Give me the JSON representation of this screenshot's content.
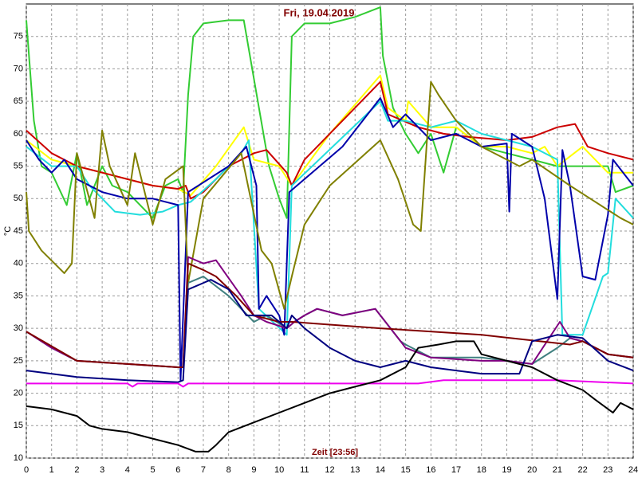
{
  "chart_data": {
    "type": "line",
    "title": "Fri, 19.04.2019",
    "x_label": "Zeit [23:56]",
    "y_label": "°C",
    "xlim": [
      0,
      24
    ],
    "xticks": [
      0,
      1,
      2,
      3,
      4,
      5,
      6,
      7,
      8,
      9,
      10,
      11,
      12,
      13,
      14,
      15,
      16,
      17,
      18,
      19,
      20,
      21,
      22,
      23,
      24
    ],
    "ylim": [
      10,
      80
    ],
    "yticks": [
      10,
      15,
      20,
      25,
      30,
      35,
      40,
      45,
      50,
      55,
      60,
      65,
      70,
      75
    ],
    "grid": true,
    "series": [
      {
        "color": "#33cc33",
        "x": [
          0,
          0.3,
          0.6,
          1,
          1.6,
          2,
          2.4,
          3,
          3.4,
          4,
          4.5,
          5,
          5.5,
          6,
          6.2,
          6.4,
          6.6,
          7,
          8,
          8.6,
          9.2,
          9.6,
          10,
          10.3,
          10.5,
          11,
          12,
          13,
          14,
          14.1,
          14.5,
          15,
          15.5,
          16,
          16.5,
          17,
          18,
          19,
          20,
          21,
          22,
          23,
          23.3,
          24
        ],
        "values": [
          77.5,
          62,
          55,
          54,
          49,
          57,
          49,
          55,
          52,
          51,
          49,
          47,
          52,
          53,
          51,
          66,
          75,
          77,
          77.5,
          77.5,
          64,
          55,
          50,
          47,
          75,
          77,
          77,
          78,
          79.5,
          72,
          64,
          60,
          57,
          60,
          54,
          61,
          58,
          57,
          56,
          55,
          55,
          55,
          51,
          52
        ]
      },
      {
        "color": "#ffff00",
        "x": [
          0,
          1,
          2,
          3,
          4,
          5,
          6,
          6.5,
          7.5,
          8.6,
          9,
          10,
          10.5,
          12,
          14,
          14.3,
          15,
          15.1,
          16,
          17,
          18,
          19,
          20,
          20.5,
          21,
          22,
          22.5,
          23,
          24
        ],
        "values": [
          59,
          56,
          55,
          54,
          53,
          52,
          51.5,
          50.5,
          55,
          61,
          56,
          55,
          52,
          60,
          69,
          64,
          62,
          65,
          61,
          61,
          58,
          58,
          57,
          58,
          55,
          58,
          56,
          54,
          54
        ]
      },
      {
        "color": "#cc0000",
        "x": [
          0,
          1,
          2,
          3,
          4,
          5,
          6,
          6.3,
          6.5,
          7,
          8,
          9,
          9.5,
          10.3,
          10.5,
          11,
          12.5,
          14,
          14.3,
          15.5,
          16.5,
          17.5,
          19,
          20,
          21,
          21.7,
          22.2,
          23,
          24
        ],
        "values": [
          60.5,
          57,
          55,
          54,
          53,
          52,
          51.5,
          52,
          50,
          51,
          55,
          57,
          57.5,
          54,
          52,
          56,
          62,
          68,
          63,
          61,
          60,
          59.5,
          59,
          59.5,
          61,
          61.5,
          58,
          57,
          56
        ]
      },
      {
        "color": "#22dddd",
        "x": [
          0,
          1,
          2,
          2.5,
          3.5,
          4.5,
          5.4,
          6,
          6.5,
          7.5,
          8.5,
          8.8,
          9.2,
          10.3,
          10.5,
          14,
          14.3,
          15,
          16,
          17,
          18,
          19,
          20,
          21,
          21.2,
          22,
          22.8,
          23,
          23.3,
          24
        ],
        "values": [
          58,
          55,
          55,
          52,
          48,
          47.5,
          48,
          49,
          49.5,
          53,
          57,
          59,
          33,
          29,
          52,
          65,
          62,
          62,
          61,
          62,
          60,
          59,
          58,
          56,
          29,
          29,
          38,
          38.5,
          50,
          47
        ]
      },
      {
        "color": "#0000aa",
        "x": [
          0,
          0.5,
          1,
          1.5,
          2,
          3,
          4,
          5,
          6,
          6.1,
          6.4,
          8,
          8.7,
          9.1,
          9.2,
          9.5,
          10,
          10.2,
          10.4,
          12.5,
          14,
          14.5,
          15,
          16,
          17,
          18,
          19,
          19.1,
          19.2,
          20,
          20.5,
          21,
          21.2,
          21.5,
          22,
          22.5,
          23,
          23.2,
          24
        ],
        "values": [
          59,
          56,
          54,
          56,
          53,
          51,
          50,
          50,
          49,
          22,
          51,
          55,
          58,
          52,
          33,
          35,
          32,
          29,
          51,
          58,
          65.5,
          61,
          63,
          59,
          60,
          58,
          58.5,
          48,
          60,
          58,
          50,
          34.5,
          57.5,
          52,
          38,
          37.5,
          47.5,
          56,
          52
        ]
      },
      {
        "color": "#808000",
        "x": [
          0,
          0.1,
          0.6,
          1.5,
          1.8,
          2,
          2.7,
          3,
          3.3,
          4,
          4.3,
          5,
          5.5,
          6.2,
          6.4,
          7,
          8.5,
          9.3,
          9.7,
          10.2,
          10.5,
          11,
          12,
          14,
          14.7,
          15.3,
          15.6,
          16,
          16.3,
          17,
          18,
          19,
          19.5,
          20,
          21.5,
          22.3,
          23.5,
          24
        ],
        "values": [
          51,
          45,
          42,
          38.5,
          40,
          57,
          47,
          60.5,
          55,
          49,
          57,
          46,
          53,
          55,
          37,
          50,
          57,
          42,
          40,
          33,
          38,
          46,
          52,
          59,
          53,
          46,
          45,
          68,
          66,
          62,
          58,
          56,
          55,
          56,
          52,
          50,
          47,
          46
        ]
      },
      {
        "color": "#408080",
        "x": [
          0,
          1,
          2,
          4,
          6,
          6.2,
          6.4,
          7,
          8,
          8.5,
          9,
          9.5,
          10.3,
          10.6,
          11,
          11.5,
          12.5,
          13.8,
          14.2,
          14.8,
          15,
          16,
          18,
          19,
          20,
          21,
          21.5,
          22,
          23,
          24
        ],
        "values": [
          29.5,
          27,
          25,
          24.5,
          24,
          24,
          37,
          38,
          35,
          33,
          31,
          32,
          30,
          31,
          32,
          33,
          32,
          33,
          31,
          28,
          27.5,
          25.5,
          25.5,
          25,
          24.5,
          27,
          28.5,
          28,
          26,
          25.5
        ]
      },
      {
        "color": "#800080",
        "x": [
          0,
          1,
          2,
          4,
          6,
          6.2,
          6.4,
          7,
          7.5,
          8.5,
          9,
          9.5,
          10.3,
          10.6,
          11,
          11.5,
          12.5,
          13.8,
          14.2,
          14.8,
          15,
          16,
          18,
          19,
          20,
          21.1,
          21.5,
          22,
          23,
          24
        ],
        "values": [
          29.5,
          27,
          25,
          24.5,
          24,
          24,
          41,
          40,
          40.5,
          35,
          32,
          31,
          30,
          31,
          32,
          33,
          32,
          33,
          31,
          28,
          27,
          25.5,
          25,
          25,
          24.5,
          31,
          28.5,
          28,
          26,
          25.5
        ]
      },
      {
        "color": "#800000",
        "x": [
          0,
          2,
          4,
          6,
          6.2,
          6.4,
          7,
          7.5,
          8.3,
          9,
          10,
          10.5,
          14,
          18,
          21.5,
          22,
          23,
          24
        ],
        "values": [
          29.5,
          25,
          24.5,
          24,
          24,
          40,
          39,
          38,
          35,
          32,
          31,
          31,
          30,
          29,
          27.5,
          28,
          26,
          25.5
        ]
      },
      {
        "color": "#000080",
        "x": [
          0,
          2,
          4,
          6,
          6.2,
          6.4,
          7.3,
          8,
          8.7,
          9.7,
          10.3,
          10.5,
          11,
          12,
          13,
          14,
          15,
          16,
          17,
          18,
          19.5,
          20,
          21,
          22,
          23,
          24
        ],
        "values": [
          23.5,
          22.5,
          22,
          21.7,
          22,
          36,
          37.5,
          36,
          32,
          32,
          30,
          32,
          30,
          27,
          25,
          24,
          25,
          24,
          23.5,
          23,
          23,
          28,
          29,
          28.5,
          25,
          23.5
        ]
      },
      {
        "color": "#ee00ee",
        "x": [
          0,
          4,
          4.2,
          4.4,
          6,
          6.2,
          6.4,
          15.5,
          16.5,
          17,
          21,
          24
        ],
        "values": [
          21.5,
          21.5,
          21,
          21.5,
          21.5,
          21,
          21.5,
          21.5,
          22,
          22,
          22,
          21.5
        ]
      },
      {
        "color": "#000000",
        "x": [
          0,
          1,
          2,
          2.5,
          3,
          4,
          5,
          6,
          6.7,
          7.2,
          7.5,
          8,
          9,
          10,
          11,
          12,
          13,
          14,
          15,
          15.5,
          16.3,
          17,
          17.7,
          18,
          19,
          20,
          21,
          22,
          22.5,
          23.2,
          23.5,
          24
        ],
        "values": [
          18,
          17.5,
          16.5,
          15,
          14.5,
          14,
          13,
          12,
          11,
          11,
          12,
          14,
          15.5,
          17,
          18.5,
          20,
          21,
          22,
          24,
          27,
          27.5,
          28,
          28,
          26,
          25,
          24,
          22,
          20.5,
          19,
          17,
          18.5,
          17.5
        ]
      }
    ]
  }
}
